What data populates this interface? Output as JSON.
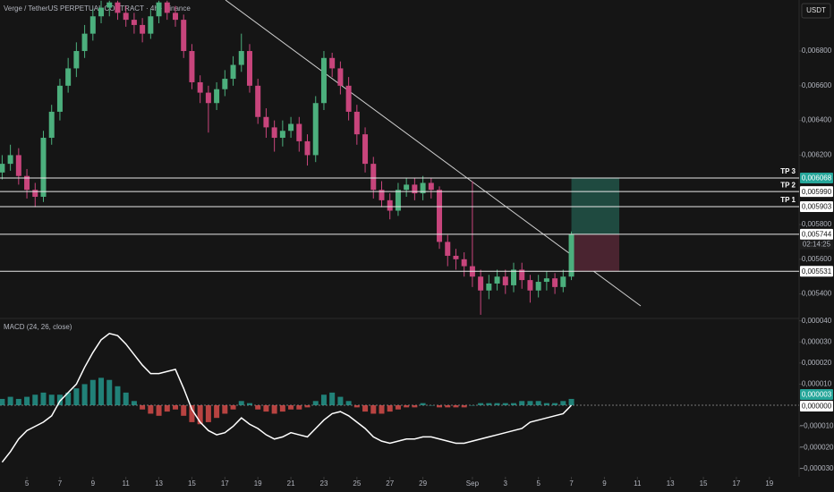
{
  "header": {
    "title": "Verge / TetherUS PERPETUAL CONTRACT · 4h · Binance",
    "currency": "USDT"
  },
  "chart_data": [
    {
      "type": "candlestick",
      "up_color": "#4caf7d",
      "down_color": "#c8457c",
      "x": [
        -1.5,
        -1.0,
        -0.5,
        0.0,
        0.5,
        1.0,
        1.5,
        2.0,
        2.5,
        3.0,
        3.5,
        4.0,
        4.5,
        5.0,
        5.5,
        6.0,
        6.5,
        7.0,
        7.5,
        8.0,
        8.5,
        9.0,
        9.5,
        10.0,
        10.5,
        11.0,
        11.5,
        12.0,
        12.5,
        13.0,
        13.5,
        14.0,
        14.5,
        15.0,
        15.5,
        16.0,
        16.5,
        17.0,
        17.5,
        18.0,
        18.5,
        19.0,
        19.5,
        20.0,
        20.5,
        21.0,
        21.5,
        22.0,
        22.5,
        23.0,
        23.5,
        24.0,
        24.5,
        25.0,
        25.5,
        26.0,
        26.5,
        27.0,
        27.5,
        28.0,
        28.5,
        29.0,
        29.5,
        30.0,
        30.5,
        31.0,
        31.5,
        32.0,
        32.5,
        33.0
      ],
      "open": [
        0.0061,
        0.00615,
        0.0062,
        0.00608,
        0.006,
        0.00596,
        0.0063,
        0.00645,
        0.0066,
        0.0067,
        0.0068,
        0.0069,
        0.007,
        0.00705,
        0.00708,
        0.00702,
        0.00698,
        0.00695,
        0.0069,
        0.007,
        0.00708,
        0.00702,
        0.00698,
        0.0068,
        0.00662,
        0.00656,
        0.0065,
        0.00658,
        0.00664,
        0.00672,
        0.0068,
        0.0066,
        0.00642,
        0.00636,
        0.0063,
        0.00634,
        0.00638,
        0.00628,
        0.0062,
        0.0065,
        0.00676,
        0.0067,
        0.0066,
        0.00645,
        0.00632,
        0.00615,
        0.006,
        0.00594,
        0.00588,
        0.006,
        0.00603,
        0.00598,
        0.00604,
        0.006,
        0.0057,
        0.00562,
        0.0056,
        0.00556,
        0.0055,
        0.00542,
        0.00546,
        0.0055,
        0.00545,
        0.00554,
        0.00548,
        0.00542,
        0.00547,
        0.00549,
        0.00544,
        0.0055
      ],
      "high": [
        0.0062,
        0.00626,
        0.00624,
        0.00612,
        0.00604,
        0.00634,
        0.00649,
        0.00664,
        0.00676,
        0.00685,
        0.00695,
        0.00704,
        0.00709,
        0.00709,
        0.00709,
        0.00706,
        0.00702,
        0.00699,
        0.00704,
        0.00709,
        0.00709,
        0.00706,
        0.00701,
        0.00684,
        0.00666,
        0.0066,
        0.00662,
        0.00669,
        0.00677,
        0.0069,
        0.00684,
        0.00664,
        0.00647,
        0.0064,
        0.0064,
        0.00642,
        0.00642,
        0.00632,
        0.00654,
        0.0068,
        0.00679,
        0.00674,
        0.00665,
        0.00649,
        0.00636,
        0.00619,
        0.00605,
        0.00598,
        0.00604,
        0.00607,
        0.00607,
        0.00608,
        0.00607,
        0.00602,
        0.00574,
        0.00566,
        0.00564,
        0.00605,
        0.00554,
        0.00551,
        0.00554,
        0.00554,
        0.00558,
        0.00558,
        0.00551,
        0.00551,
        0.00553,
        0.00552,
        0.00554,
        0.00576
      ],
      "low": [
        0.00606,
        0.00611,
        0.00603,
        0.00595,
        0.0059,
        0.00593,
        0.00626,
        0.0064,
        0.00656,
        0.00665,
        0.00676,
        0.00686,
        0.00696,
        0.007,
        0.00698,
        0.00694,
        0.0069,
        0.00685,
        0.00687,
        0.00696,
        0.00698,
        0.00694,
        0.00676,
        0.00658,
        0.0065,
        0.00633,
        0.00646,
        0.00654,
        0.0066,
        0.00668,
        0.00656,
        0.00638,
        0.0063,
        0.00622,
        0.00625,
        0.0063,
        0.00622,
        0.00614,
        0.00616,
        0.00646,
        0.00665,
        0.00655,
        0.0064,
        0.00626,
        0.0061,
        0.00595,
        0.0059,
        0.00583,
        0.00585,
        0.00596,
        0.00594,
        0.00594,
        0.00595,
        0.00566,
        0.00556,
        0.00554,
        0.0055,
        0.00544,
        0.00528,
        0.00537,
        0.00542,
        0.0054,
        0.00541,
        0.00543,
        0.00535,
        0.00538,
        0.00542,
        0.0054,
        0.00541,
        0.00548
      ],
      "close": [
        0.00615,
        0.0062,
        0.00608,
        0.006,
        0.00596,
        0.0063,
        0.00645,
        0.0066,
        0.0067,
        0.0068,
        0.0069,
        0.007,
        0.00705,
        0.00708,
        0.00702,
        0.00698,
        0.00695,
        0.0069,
        0.007,
        0.00708,
        0.00702,
        0.00698,
        0.0068,
        0.00662,
        0.00656,
        0.0065,
        0.00658,
        0.00664,
        0.00672,
        0.0068,
        0.0066,
        0.00642,
        0.00636,
        0.0063,
        0.00634,
        0.00638,
        0.00628,
        0.0062,
        0.0065,
        0.00676,
        0.0067,
        0.0066,
        0.00645,
        0.00632,
        0.00615,
        0.006,
        0.00594,
        0.00588,
        0.006,
        0.00603,
        0.00598,
        0.00604,
        0.006,
        0.0057,
        0.00562,
        0.0056,
        0.00556,
        0.0055,
        0.00542,
        0.00546,
        0.0055,
        0.00545,
        0.00554,
        0.00548,
        0.00542,
        0.00547,
        0.00549,
        0.00544,
        0.0055,
        0.005744
      ],
      "xlim": [
        -1.63,
        46.8
      ],
      "ylim": [
        0.005264,
        0.007094
      ],
      "yticks": [
        {
          "value": 0.0054,
          "label": "0,005400"
        },
        {
          "value": 0.0056,
          "label": "0,005600"
        },
        {
          "value": 0.0058,
          "label": "0,005800"
        },
        {
          "value": 0.0062,
          "label": "0,006200"
        },
        {
          "value": 0.0064,
          "label": "0,006400"
        },
        {
          "value": 0.0066,
          "label": "0,006600"
        },
        {
          "value": 0.0068,
          "label": "0,006800"
        }
      ],
      "levels": [
        {
          "name": "TP 3",
          "value": 0.006068,
          "label": "0,006068",
          "tag_color": "#26a69a"
        },
        {
          "name": "TP 2",
          "value": 0.00599,
          "label": "0,005990",
          "tag_color": "#ffffff"
        },
        {
          "name": "TP 1",
          "value": 0.005903,
          "label": "0,005903",
          "tag_color": "#ffffff"
        },
        {
          "value": 0.005744,
          "label": "0,005744",
          "countdown": "02:14:25",
          "tag_color": "#ffffff"
        },
        {
          "value": 0.005531,
          "label": "0,005531",
          "tag_color": "#ffffff"
        }
      ],
      "position_x": [
        33.0,
        35.9
      ],
      "position_colors": [
        "#1f4a40",
        "#4a2430"
      ]
    },
    {
      "type": "macd",
      "title": "MACD (24, 26, close)",
      "line_color": "#ffffff",
      "up_color": "#26a69a",
      "down_color": "#ef5350",
      "macd": [
        -2.7e-05,
        -2.2e-05,
        -1.6e-05,
        -1.2e-05,
        -1e-05,
        -8e-06,
        -5e-06,
        2e-06,
        6e-06,
        1e-05,
        1.8e-05,
        2.5e-05,
        3.1e-05,
        3.4e-05,
        3.3e-05,
        2.9e-05,
        2.4e-05,
        1.9e-05,
        1.5e-05,
        1.5e-05,
        1.6e-05,
        1.7e-05,
        8e-06,
        -2e-06,
        -8e-06,
        -1.2e-05,
        -1.4e-05,
        -1.3e-05,
        -1e-05,
        -6e-06,
        -9e-06,
        -1.1e-05,
        -1.4e-05,
        -1.6e-05,
        -1.5e-05,
        -1.3e-05,
        -1.4e-05,
        -1.5e-05,
        -1.1e-05,
        -7e-06,
        -4e-06,
        -3e-06,
        -5e-06,
        -8e-06,
        -1.1e-05,
        -1.5e-05,
        -1.7e-05,
        -1.8e-05,
        -1.7e-05,
        -1.6e-05,
        -1.6e-05,
        -1.5e-05,
        -1.5e-05,
        -1.6e-05,
        -1.7e-05,
        -1.8e-05,
        -1.8e-05,
        -1.7e-05,
        -1.6e-05,
        -1.5e-05,
        -1.4e-05,
        -1.3e-05,
        -1.2e-05,
        -1.1e-05,
        -8e-06,
        -7e-06,
        -6e-06,
        -5e-06,
        -4e-06,
        0
      ],
      "histogram": [
        3e-06,
        4e-06,
        3e-06,
        4e-06,
        5e-06,
        6e-06,
        5e-06,
        5e-06,
        6e-06,
        8e-06,
        1e-05,
        1.2e-05,
        1.3e-05,
        1.2e-05,
        9e-06,
        6e-06,
        2e-06,
        -2e-06,
        -4e-06,
        -5e-06,
        -3e-06,
        -2e-06,
        -5e-06,
        -8e-06,
        -9e-06,
        -8e-06,
        -6e-06,
        -4e-06,
        -2e-06,
        2e-06,
        1e-06,
        -2e-06,
        -3e-06,
        -4e-06,
        -3e-06,
        -2e-06,
        -2e-06,
        -1e-06,
        2e-06,
        5e-06,
        6e-06,
        4e-06,
        2e-06,
        -1e-06,
        -3e-06,
        -4e-06,
        -4e-06,
        -3e-06,
        -2e-06,
        -1e-06,
        -1e-06,
        1e-06,
        0,
        -1e-06,
        -1e-06,
        -1e-06,
        -1e-06,
        0,
        1e-06,
        1e-06,
        1e-06,
        1e-06,
        1e-06,
        2e-06,
        2e-06,
        2e-06,
        1e-06,
        1e-06,
        2e-06,
        3e-06
      ],
      "ylim": [
        -3.39e-05,
        4.07e-05
      ],
      "yticks": [
        {
          "value": 4e-05,
          "label": "0,000040"
        },
        {
          "value": 3e-05,
          "label": "0,000030"
        },
        {
          "value": 2e-05,
          "label": "0,000020"
        },
        {
          "value": 1e-05,
          "label": "0,000010"
        },
        {
          "value": -1e-05,
          "label": "−0,000010"
        },
        {
          "value": -2e-05,
          "label": "−0,000020"
        },
        {
          "value": -3e-05,
          "label": "−0,000030"
        }
      ],
      "value_tags": [
        {
          "value": 3e-06,
          "label": "0,000003",
          "tag_color": "#26a69a"
        },
        {
          "value": 0,
          "label": "0,000000",
          "tag_color": "#ffffff"
        }
      ],
      "xticks": [
        {
          "value": 0,
          "label": "5"
        },
        {
          "value": 2,
          "label": "7"
        },
        {
          "value": 4,
          "label": "9"
        },
        {
          "value": 6,
          "label": "11"
        },
        {
          "value": 8,
          "label": "13"
        },
        {
          "value": 10,
          "label": "15"
        },
        {
          "value": 12,
          "label": "17"
        },
        {
          "value": 14,
          "label": "19"
        },
        {
          "value": 16,
          "label": "21"
        },
        {
          "value": 18,
          "label": "23"
        },
        {
          "value": 20,
          "label": "25"
        },
        {
          "value": 22,
          "label": "27"
        },
        {
          "value": 24,
          "label": "29"
        },
        {
          "value": 27,
          "label": "Sep"
        },
        {
          "value": 29,
          "label": "3"
        },
        {
          "value": 31,
          "label": "5"
        },
        {
          "value": 33,
          "label": "7"
        },
        {
          "value": 35,
          "label": "9"
        },
        {
          "value": 37,
          "label": "11"
        },
        {
          "value": 39,
          "label": "13"
        },
        {
          "value": 41,
          "label": "15"
        },
        {
          "value": 43,
          "label": "17"
        },
        {
          "value": 45,
          "label": "19"
        }
      ]
    }
  ]
}
